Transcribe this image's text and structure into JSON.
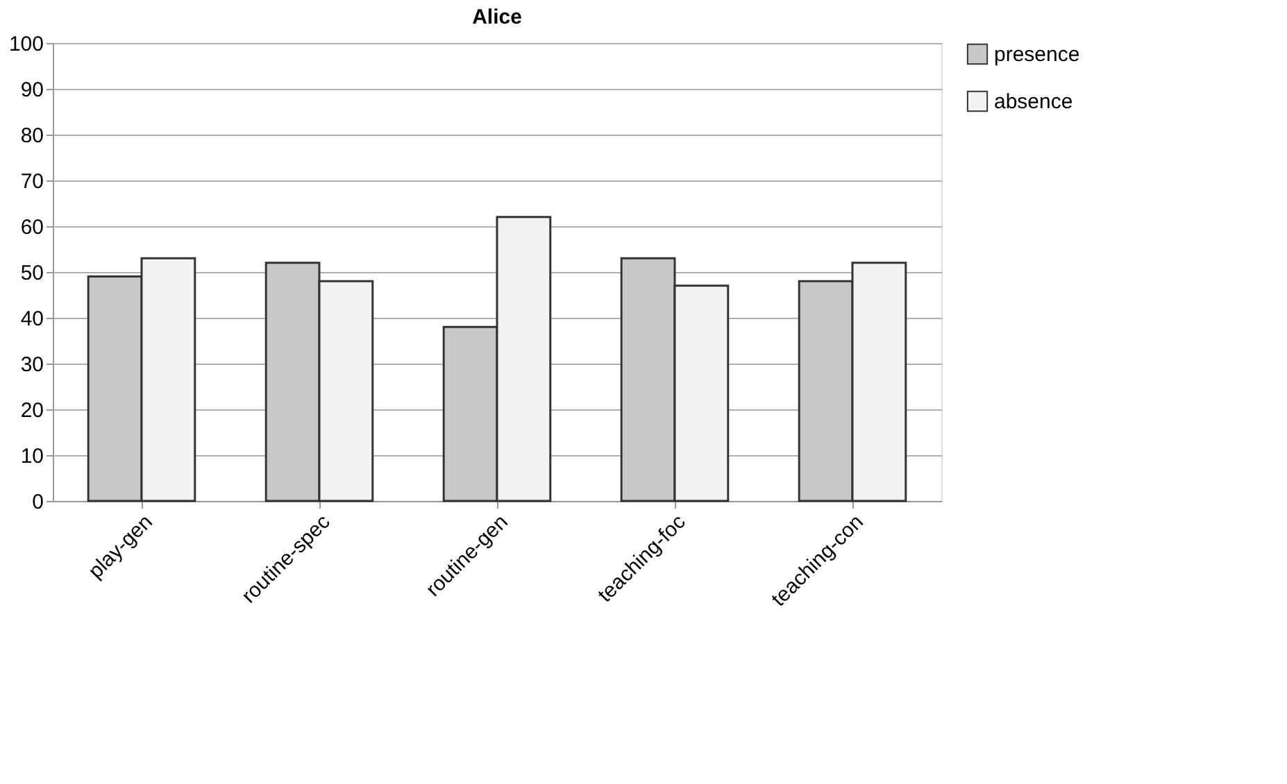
{
  "chart_data": {
    "type": "bar",
    "title": "Alice",
    "categories": [
      "play-gen",
      "routine-spec",
      "routine-gen",
      "teaching-foc",
      "teaching-con"
    ],
    "series": [
      {
        "name": "presence",
        "color": "#c8c8c8",
        "values": [
          49,
          52,
          38,
          53,
          48
        ]
      },
      {
        "name": "absence",
        "color": "#f2f2f2",
        "values": [
          53,
          48,
          62,
          47,
          52
        ]
      }
    ],
    "ylim": [
      0,
      100
    ],
    "yticks": [
      0,
      10,
      20,
      30,
      40,
      50,
      60,
      70,
      80,
      90,
      100
    ],
    "grid": "y",
    "legend": "right"
  }
}
